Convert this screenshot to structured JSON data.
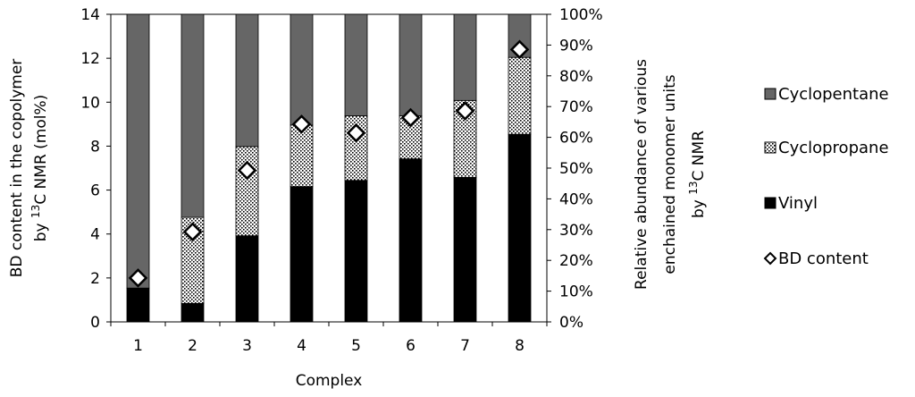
{
  "chart_data": {
    "type": "bar",
    "stacked": true,
    "categories": [
      "1",
      "2",
      "3",
      "4",
      "5",
      "6",
      "7",
      "8"
    ],
    "series": [
      {
        "name": "Vinyl",
        "axis": "right",
        "color": "#000000",
        "values": [
          11,
          6,
          28,
          44,
          46,
          53,
          47,
          61
        ]
      },
      {
        "name": "Cyclopropane",
        "axis": "right",
        "color": "#ffffff",
        "pattern": "dots",
        "values": [
          0,
          28,
          29,
          20,
          21,
          14,
          25,
          25
        ]
      },
      {
        "name": "Cyclopentane",
        "axis": "right",
        "color": "#666666",
        "values": [
          89,
          66,
          43,
          36,
          33,
          33,
          28,
          14
        ]
      },
      {
        "name": "BD content",
        "axis": "left",
        "marker": "diamond",
        "values": [
          2.0,
          4.1,
          6.9,
          9.0,
          8.6,
          9.3,
          9.6,
          12.4
        ]
      }
    ],
    "left_axis": {
      "label_parts": [
        "BD content in the copolymer",
        "by ",
        "13",
        "C NMR (mol%)"
      ],
      "ylim": [
        0,
        14
      ],
      "ticks": [
        "0",
        "2",
        "4",
        "6",
        "8",
        "10",
        "12",
        "14"
      ]
    },
    "right_axis": {
      "label_parts": [
        "Relative abundance of various",
        "enchained monomer units",
        "by ",
        "13",
        "C NMR"
      ],
      "ylim": [
        0,
        100
      ],
      "ticks": [
        "0%",
        "10%",
        "20%",
        "30%",
        "40%",
        "50%",
        "60%",
        "70%",
        "80%",
        "90%",
        "100%"
      ]
    },
    "xlabel": "Complex",
    "legend": {
      "position": "right",
      "items": [
        "Cyclopentane",
        "Cyclopropane",
        "Vinyl",
        "BD content"
      ]
    },
    "grid": false
  }
}
